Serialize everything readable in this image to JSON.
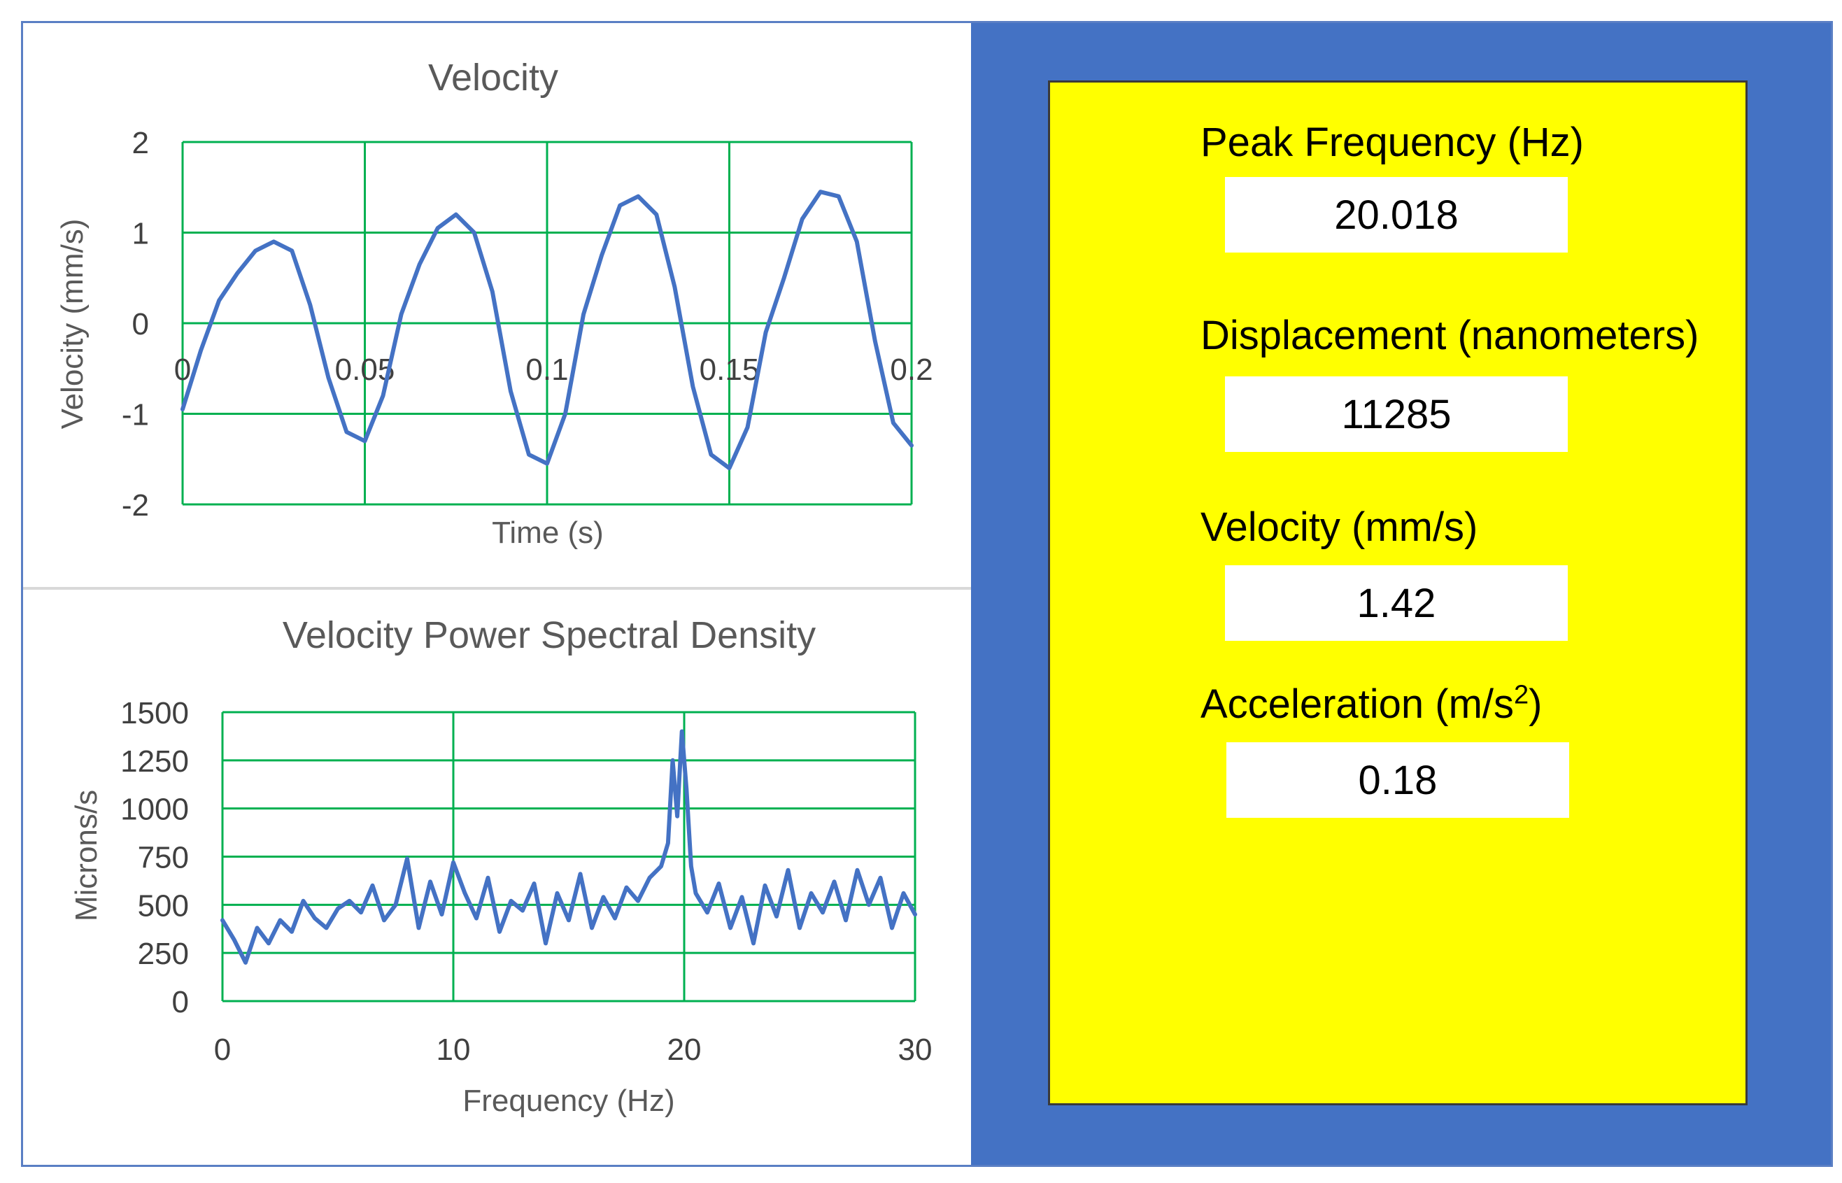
{
  "chart_data": [
    {
      "type": "line",
      "title": "Velocity",
      "xlabel": "Time (s)",
      "ylabel": "Velocity (mm/s)",
      "xlim": [
        0,
        0.2
      ],
      "ylim": [
        -2,
        2
      ],
      "xticks": [
        "0",
        "0.05",
        "0.1",
        "0.15",
        "0.2"
      ],
      "yticks": [
        "2",
        "1",
        "0",
        "-1",
        "-2"
      ],
      "grid": true,
      "line_color": "#4472c4",
      "grid_color": "#00b050",
      "x": [
        0,
        0.005,
        0.01,
        0.015,
        0.02,
        0.025,
        0.03,
        0.035,
        0.04,
        0.045,
        0.05,
        0.055,
        0.06,
        0.065,
        0.07,
        0.075,
        0.08,
        0.085,
        0.09,
        0.095,
        0.1,
        0.105,
        0.11,
        0.115,
        0.12,
        0.125,
        0.13,
        0.135,
        0.14,
        0.145,
        0.15,
        0.155,
        0.16,
        0.165,
        0.17,
        0.175,
        0.18,
        0.185,
        0.19,
        0.195,
        0.2
      ],
      "y": [
        -0.95,
        -0.3,
        0.25,
        0.55,
        0.8,
        0.9,
        0.8,
        0.2,
        -0.6,
        -1.2,
        -1.3,
        -0.8,
        0.1,
        0.65,
        1.05,
        1.2,
        1.0,
        0.35,
        -0.75,
        -1.45,
        -1.55,
        -1.0,
        0.1,
        0.75,
        1.3,
        1.4,
        1.2,
        0.4,
        -0.7,
        -1.45,
        -1.6,
        -1.15,
        -0.1,
        0.5,
        1.15,
        1.45,
        1.4,
        0.9,
        -0.2,
        -1.1,
        -1.35
      ]
    },
    {
      "type": "line",
      "title": "Velocity Power Spectral Density",
      "xlabel": "Frequency  (Hz)",
      "ylabel": "Microns/s",
      "xlim": [
        0,
        30
      ],
      "ylim": [
        0,
        1500
      ],
      "xticks": [
        "0",
        "10",
        "20",
        "30"
      ],
      "yticks": [
        "1500",
        "1250",
        "1000",
        "750",
        "500",
        "250",
        "0"
      ],
      "grid": true,
      "line_color": "#4472c4",
      "grid_color": "#00b050",
      "x": [
        0,
        0.5,
        1,
        1.5,
        2,
        2.5,
        3,
        3.5,
        4,
        4.5,
        5,
        5.5,
        6,
        6.5,
        7,
        7.5,
        8,
        8.5,
        9,
        9.5,
        10,
        10.5,
        11,
        11.5,
        12,
        12.5,
        13,
        13.5,
        14,
        14.5,
        15,
        15.5,
        16,
        16.5,
        17,
        17.5,
        18,
        18.5,
        19,
        19.3,
        19.5,
        19.7,
        19.9,
        20.1,
        20.3,
        20.5,
        21,
        21.5,
        22,
        22.5,
        23,
        23.5,
        24,
        24.5,
        25,
        25.5,
        26,
        26.5,
        27,
        27.5,
        28,
        28.5,
        29,
        29.5,
        30
      ],
      "y": [
        420,
        320,
        200,
        380,
        300,
        420,
        360,
        520,
        430,
        380,
        480,
        520,
        460,
        600,
        420,
        500,
        740,
        380,
        620,
        450,
        720,
        560,
        430,
        640,
        360,
        520,
        470,
        610,
        300,
        560,
        420,
        660,
        380,
        540,
        430,
        590,
        520,
        640,
        700,
        820,
        1250,
        960,
        1400,
        1100,
        700,
        560,
        460,
        610,
        380,
        540,
        300,
        600,
        440,
        680,
        380,
        560,
        460,
        620,
        420,
        680,
        500,
        640,
        380,
        560,
        450
      ]
    }
  ],
  "metrics": [
    {
      "label": "Peak Frequency (Hz)",
      "value": "20.018"
    },
    {
      "label": "Displacement (nanometers)",
      "value": "11285"
    },
    {
      "label": "Velocity (mm/s)",
      "value": "1.42"
    },
    {
      "label_main": "Acceleration (m/s",
      "label_sup": "2",
      "label_end": ")",
      "value": "0.18"
    }
  ]
}
